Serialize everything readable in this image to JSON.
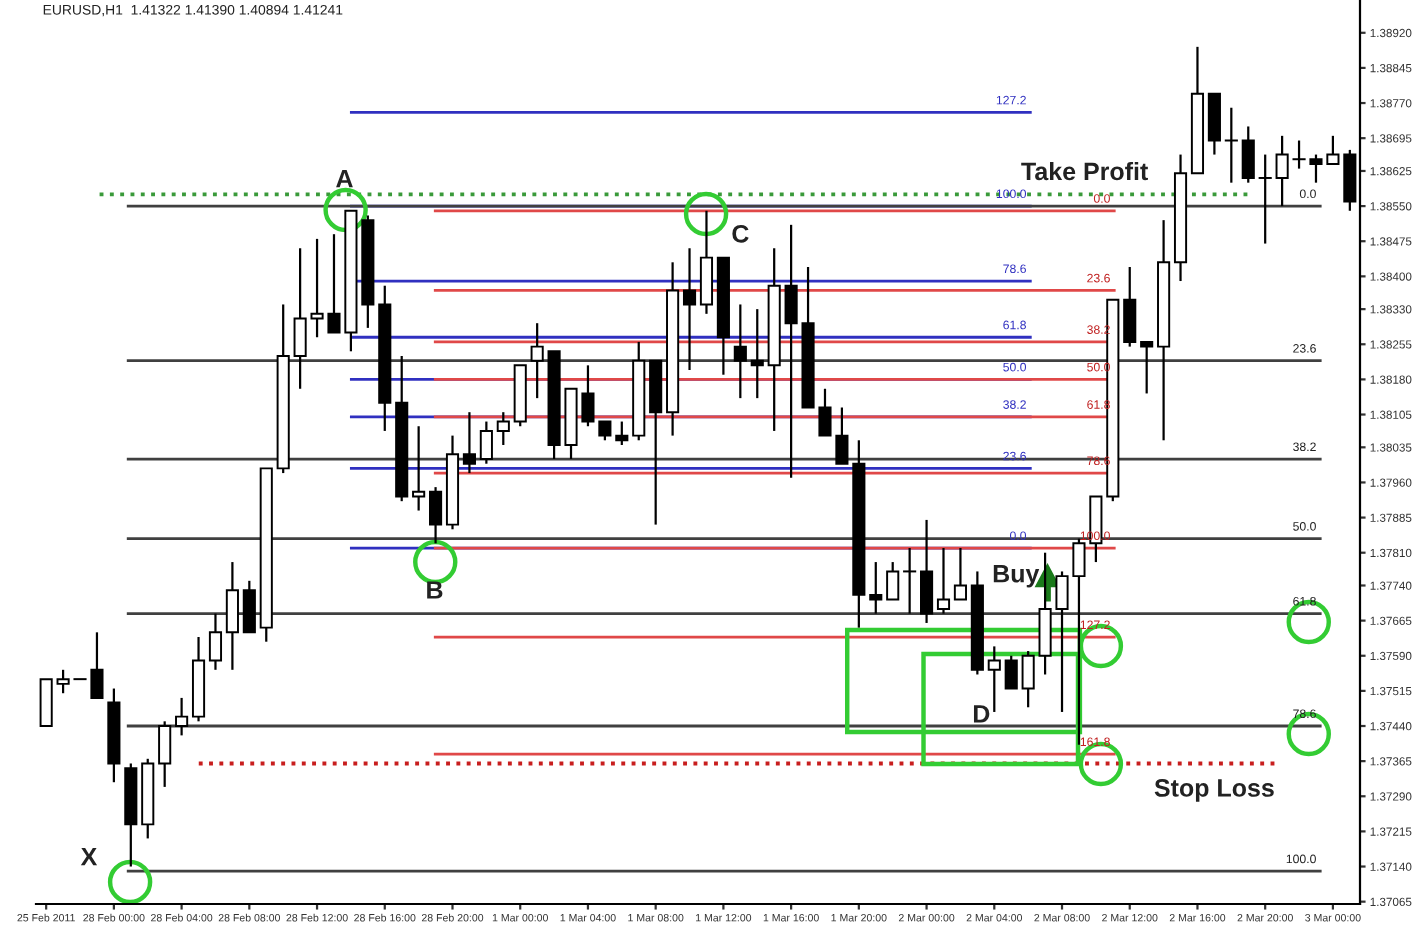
{
  "chart_data": {
    "type": "candlestick",
    "categories": [
      "25 Feb 2011",
      null,
      null,
      null,
      "28 Feb 00:00",
      null,
      null,
      null,
      "28 Feb 04:00",
      null,
      null,
      null,
      "28 Feb 08:00",
      null,
      null,
      null,
      "28 Feb 12:00",
      null,
      null,
      null,
      "28 Feb 16:00",
      null,
      null,
      null,
      "28 Feb 20:00",
      null,
      null,
      null,
      "1 Mar 00:00",
      null,
      null,
      null,
      "1 Mar 04:00",
      null,
      null,
      null,
      "1 Mar 08:00",
      null,
      null,
      null,
      "1 Mar 12:00",
      null,
      null,
      null,
      "1 Mar 16:00",
      null,
      null,
      null,
      "1 Mar 20:00",
      null,
      null,
      null,
      "2 Mar 00:00",
      null,
      null,
      null,
      "2 Mar 04:00",
      null,
      null,
      null,
      "2 Mar 08:00",
      null,
      null,
      null,
      "2 Mar 12:00",
      null,
      null,
      null,
      "2 Mar 16:00",
      null,
      null,
      null,
      "2 Mar 20:00",
      null,
      null,
      null,
      "3 Mar 00:00",
      null
    ],
    "series": [
      {
        "color": "#000000",
        "ohlc": [
          [
            1.3744,
            1.3754,
            1.3744,
            1.3754
          ],
          [
            1.3753,
            1.3756,
            1.3751,
            1.3754
          ],
          [
            1.3754,
            1.3754,
            1.3754,
            1.3754
          ],
          [
            1.3756,
            1.3764,
            1.375,
            1.375
          ],
          [
            1.3749,
            1.3752,
            1.3732,
            1.3736
          ],
          [
            1.3735,
            1.3736,
            1.3714,
            1.3723
          ],
          [
            1.3723,
            1.3737,
            1.372,
            1.3736
          ],
          [
            1.3736,
            1.3745,
            1.3731,
            1.3744
          ],
          [
            1.3744,
            1.375,
            1.3742,
            1.3746
          ],
          [
            1.3746,
            1.3763,
            1.3745,
            1.3758
          ],
          [
            1.3758,
            1.3768,
            1.3756,
            1.3764
          ],
          [
            1.3764,
            1.3779,
            1.3756,
            1.3773
          ],
          [
            1.3773,
            1.3775,
            1.3764,
            1.3764
          ],
          [
            1.3765,
            1.3799,
            1.3762,
            1.3799
          ],
          [
            1.3799,
            1.3834,
            1.3798,
            1.3823
          ],
          [
            1.3823,
            1.3846,
            1.3816,
            1.3831
          ],
          [
            1.3831,
            1.3848,
            1.3827,
            1.3832
          ],
          [
            1.3832,
            1.3849,
            1.3828,
            1.3828
          ],
          [
            1.3828,
            1.3854,
            1.3824,
            1.3854
          ],
          [
            1.3852,
            1.3853,
            1.3829,
            1.3834
          ],
          [
            1.3834,
            1.3838,
            1.3807,
            1.3813
          ],
          [
            1.3813,
            1.3823,
            1.3792,
            1.3793
          ],
          [
            1.3793,
            1.3808,
            1.379,
            1.3794
          ],
          [
            1.3794,
            1.3795,
            1.3783,
            1.3787
          ],
          [
            1.3787,
            1.3806,
            1.3786,
            1.3802
          ],
          [
            1.3802,
            1.3811,
            1.3798,
            1.38
          ],
          [
            1.3801,
            1.3809,
            1.38,
            1.3807
          ],
          [
            1.3807,
            1.3811,
            1.3804,
            1.3809
          ],
          [
            1.3809,
            1.3821,
            1.3808,
            1.3821
          ],
          [
            1.3822,
            1.383,
            1.3814,
            1.3825
          ],
          [
            1.3824,
            1.3824,
            1.3801,
            1.3804
          ],
          [
            1.3804,
            1.3816,
            1.3801,
            1.3816
          ],
          [
            1.3815,
            1.3821,
            1.3808,
            1.3809
          ],
          [
            1.3809,
            1.3809,
            1.3805,
            1.3806
          ],
          [
            1.3806,
            1.3809,
            1.3804,
            1.3805
          ],
          [
            1.3806,
            1.3826,
            1.3805,
            1.3822
          ],
          [
            1.3822,
            1.3822,
            1.3787,
            1.3811
          ],
          [
            1.3811,
            1.3843,
            1.3806,
            1.3837
          ],
          [
            1.3837,
            1.3846,
            1.382,
            1.3834
          ],
          [
            1.3834,
            1.3854,
            1.3832,
            1.3844
          ],
          [
            1.3844,
            1.3844,
            1.3819,
            1.3827
          ],
          [
            1.3825,
            1.3834,
            1.3814,
            1.3822
          ],
          [
            1.3822,
            1.3833,
            1.3814,
            1.3821
          ],
          [
            1.3821,
            1.3846,
            1.3807,
            1.3838
          ],
          [
            1.3838,
            1.3851,
            1.3797,
            1.383
          ],
          [
            1.383,
            1.3842,
            1.3812,
            1.3812
          ],
          [
            1.3812,
            1.3816,
            1.3806,
            1.3806
          ],
          [
            1.3806,
            1.3812,
            1.38,
            1.38
          ],
          [
            1.38,
            1.3805,
            1.3765,
            1.3772
          ],
          [
            1.3772,
            1.3779,
            1.3768,
            1.3771
          ],
          [
            1.3771,
            1.3779,
            1.3771,
            1.3777
          ],
          [
            1.3777,
            1.3782,
            1.3768,
            1.3777
          ],
          [
            1.3777,
            1.3788,
            1.3766,
            1.3768
          ],
          [
            1.3769,
            1.3782,
            1.3768,
            1.3771
          ],
          [
            1.3771,
            1.3782,
            1.3771,
            1.3774
          ],
          [
            1.3774,
            1.3777,
            1.3755,
            1.3756
          ],
          [
            1.3756,
            1.3761,
            1.3747,
            1.3758
          ],
          [
            1.3758,
            1.3759,
            1.3752,
            1.3752
          ],
          [
            1.3752,
            1.376,
            1.3748,
            1.3759
          ],
          [
            1.3759,
            1.3781,
            1.3755,
            1.3769
          ],
          [
            1.3769,
            1.3777,
            1.3747,
            1.3776
          ],
          [
            1.3776,
            1.3784,
            1.374,
            1.3783
          ],
          [
            1.3783,
            1.3793,
            1.3779,
            1.3793
          ],
          [
            1.3793,
            1.3835,
            1.3792,
            1.3835
          ],
          [
            1.3835,
            1.3842,
            1.3825,
            1.3826
          ],
          [
            1.3826,
            1.3826,
            1.3815,
            1.3825
          ],
          [
            1.3825,
            1.3852,
            1.3805,
            1.3843
          ],
          [
            1.3843,
            1.3866,
            1.3839,
            1.3862
          ],
          [
            1.3862,
            1.3889,
            1.3862,
            1.3879
          ],
          [
            1.3879,
            1.3879,
            1.3866,
            1.3869
          ],
          [
            1.3869,
            1.3876,
            1.386,
            1.3869
          ],
          [
            1.3869,
            1.3872,
            1.386,
            1.3861
          ],
          [
            1.3861,
            1.3866,
            1.3847,
            1.3861
          ],
          [
            1.3861,
            1.387,
            1.3855,
            1.3866
          ],
          [
            1.3865,
            1.3869,
            1.3863,
            1.3865
          ],
          [
            1.3865,
            1.3866,
            1.386,
            1.3864
          ],
          [
            1.3864,
            1.387,
            1.3864,
            1.3866
          ],
          [
            1.3866,
            1.3867,
            1.3854,
            1.3856
          ]
        ]
      }
    ],
    "ylim": [
      1.3706,
      1.3899
    ],
    "yticks": [
      {
        "value": 1.3892,
        "label": "1.38920"
      },
      {
        "value": 1.38845,
        "label": "1.38845"
      },
      {
        "value": 1.3877,
        "label": "1.38770"
      },
      {
        "value": 1.38695,
        "label": "1.38695"
      },
      {
        "value": 1.38625,
        "label": "1.38625"
      },
      {
        "value": 1.3855,
        "label": "1.38550"
      },
      {
        "value": 1.38475,
        "label": "1.38475"
      },
      {
        "value": 1.384,
        "label": "1.38400"
      },
      {
        "value": 1.3833,
        "label": "1.38330"
      },
      {
        "value": 1.38255,
        "label": "1.38255"
      },
      {
        "value": 1.3818,
        "label": "1.38180"
      },
      {
        "value": 1.38105,
        "label": "1.38105"
      },
      {
        "value": 1.38035,
        "label": "1.38035"
      },
      {
        "value": 1.3796,
        "label": "1.37960"
      },
      {
        "value": 1.37885,
        "label": "1.37885"
      },
      {
        "value": 1.3781,
        "label": "1.37810"
      },
      {
        "value": 1.3774,
        "label": "1.37740"
      },
      {
        "value": 1.37665,
        "label": "1.37665"
      },
      {
        "value": 1.3759,
        "label": "1.37590"
      },
      {
        "value": 1.37515,
        "label": "1.37515"
      },
      {
        "value": 1.3744,
        "label": "1.37440"
      },
      {
        "value": 1.37365,
        "label": "1.37365"
      },
      {
        "value": 1.3729,
        "label": "1.37290"
      },
      {
        "value": 1.37215,
        "label": "1.37215"
      },
      {
        "value": 1.3714,
        "label": "1.37140"
      },
      {
        "value": 1.37065,
        "label": "1.37065"
      }
    ],
    "ref_lines": [
      {
        "axis": "y",
        "value": 1.3875,
        "color": "#3030c0"
      },
      {
        "axis": "y",
        "value": 1.3855,
        "color": "#3030c0"
      },
      {
        "axis": "y",
        "value": 1.3839,
        "color": "#3030c0"
      },
      {
        "axis": "y",
        "value": 1.3827,
        "color": "#3030c0"
      },
      {
        "axis": "y",
        "value": 1.3818,
        "color": "#3030c0"
      },
      {
        "axis": "y",
        "value": 1.381,
        "color": "#3030c0"
      },
      {
        "axis": "y",
        "value": 1.3799,
        "color": "#3030c0"
      },
      {
        "axis": "y",
        "value": 1.3782,
        "color": "#3030c0"
      },
      {
        "axis": "y",
        "value": 1.3854,
        "color": "#e04848"
      },
      {
        "axis": "y",
        "value": 1.3837,
        "color": "#e04848"
      },
      {
        "axis": "y",
        "value": 1.3826,
        "color": "#e04848"
      },
      {
        "axis": "y",
        "value": 1.3818,
        "color": "#e04848"
      },
      {
        "axis": "y",
        "value": 1.381,
        "color": "#e04848"
      },
      {
        "axis": "y",
        "value": 1.3798,
        "color": "#e04848"
      },
      {
        "axis": "y",
        "value": 1.3782,
        "color": "#e04848"
      },
      {
        "axis": "y",
        "value": 1.3763,
        "color": "#e04848"
      },
      {
        "axis": "y",
        "value": 1.3738,
        "color": "#e04848"
      },
      {
        "axis": "y",
        "value": 1.3855,
        "color": "#404040"
      },
      {
        "axis": "y",
        "value": 1.3822,
        "color": "#404040"
      },
      {
        "axis": "y",
        "value": 1.3801,
        "color": "#404040"
      },
      {
        "axis": "y",
        "value": 1.3784,
        "color": "#404040"
      },
      {
        "axis": "y",
        "value": 1.3768,
        "color": "#404040"
      },
      {
        "axis": "y",
        "value": 1.3744,
        "color": "#404040"
      },
      {
        "axis": "y",
        "value": 1.3713,
        "color": "#404040"
      },
      {
        "axis": "y",
        "value": 1.38575,
        "color": "#3a9a3a",
        "line_style": "dotted"
      },
      {
        "axis": "y",
        "value": 1.3736,
        "color": "#c81e1e",
        "line_style": "dotted"
      }
    ],
    "annotations": [
      "EURUSD,H1  1.41322 1.41390 1.40894 1.41241",
      "A",
      "B",
      "C",
      "D",
      "X",
      "Buy",
      "Take Profit",
      "Stop Loss",
      {
        "text": "127.2",
        "y": 1.3875
      },
      {
        "text": "100.0",
        "y": 1.3855
      },
      {
        "text": "78.6",
        "y": 1.3839
      },
      {
        "text": "61.8",
        "y": 1.3827
      },
      {
        "text": "50.0",
        "y": 1.3818
      },
      {
        "text": "38.2",
        "y": 1.381
      },
      {
        "text": "23.6",
        "y": 1.3799
      },
      {
        "text": "0.0",
        "y": 1.3782
      },
      {
        "text": "0.0",
        "y": 1.3854
      },
      {
        "text": "23.6",
        "y": 1.3837
      },
      {
        "text": "38.2",
        "y": 1.3826
      },
      {
        "text": "50.0",
        "y": 1.3818
      },
      {
        "text": "61.8",
        "y": 1.381
      },
      {
        "text": "78.6",
        "y": 1.3798
      },
      {
        "text": "100.0",
        "y": 1.3782
      },
      {
        "text": "127.2",
        "y": 1.3763
      },
      {
        "text": "161.8",
        "y": 1.3738
      },
      {
        "text": "0.0",
        "y": 1.3855
      },
      {
        "text": "23.6",
        "y": 1.3822
      },
      {
        "text": "38.2",
        "y": 1.3801
      },
      {
        "text": "50.0",
        "y": 1.3784
      },
      {
        "text": "61.8",
        "y": 1.3768
      },
      {
        "text": "78.6",
        "y": 1.3744
      },
      {
        "text": "100.0",
        "y": 1.3713
      }
    ]
  }
}
